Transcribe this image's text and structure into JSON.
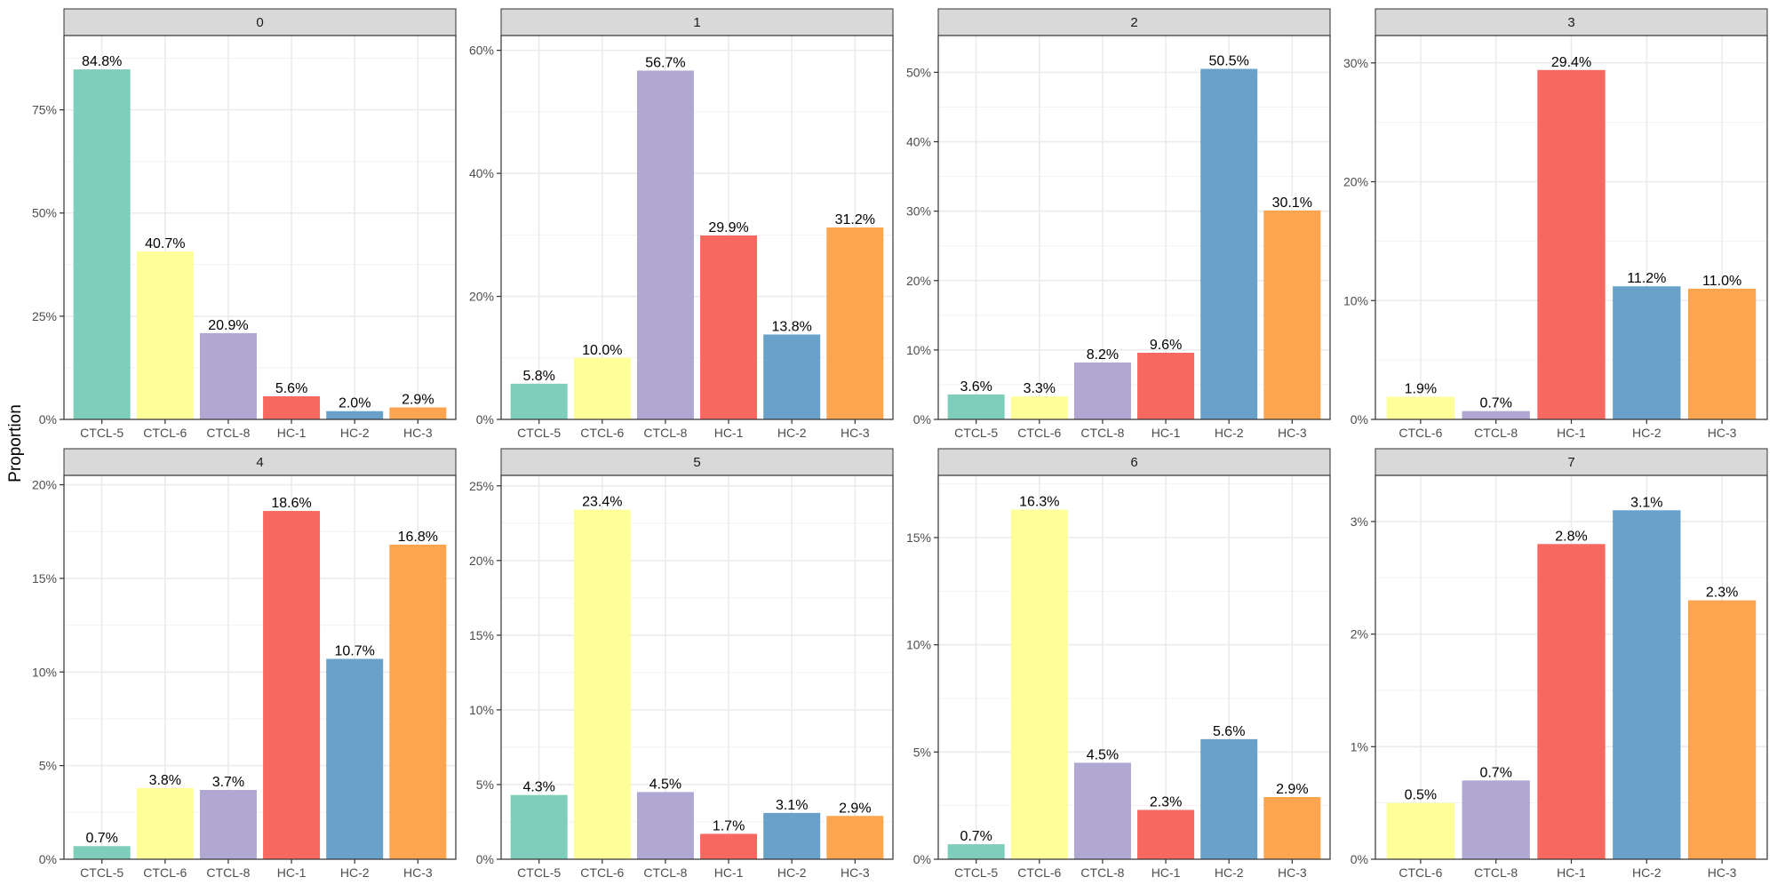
{
  "figure": {
    "ylabel": "Proportion"
  },
  "colors": {
    "CTCL-5": "#7FCDBB",
    "CTCL-6": "#FFFF99",
    "CTCL-8": "#B0A8D2",
    "HC-1": "#F76861",
    "HC-2": "#6AA1CB",
    "HC-3": "#FCA550",
    "strip_bg": "#D9D9D9",
    "grid": "#EBEBEB"
  },
  "chart_data": [
    {
      "type": "bar",
      "facet": "0",
      "categories": [
        "CTCL-5",
        "CTCL-6",
        "CTCL-8",
        "HC-1",
        "HC-2",
        "HC-3"
      ],
      "values": [
        84.8,
        40.7,
        20.9,
        5.6,
        2.0,
        2.9
      ],
      "labels": [
        "84.8%",
        "40.7%",
        "20.9%",
        "5.6%",
        "2.0%",
        "2.9%"
      ],
      "ylim": [
        0,
        93
      ],
      "yticks": [
        0,
        25,
        50,
        75
      ],
      "ytick_labels": [
        "0%",
        "25%",
        "50%",
        "75%"
      ],
      "grid": true
    },
    {
      "type": "bar",
      "facet": "1",
      "categories": [
        "CTCL-5",
        "CTCL-6",
        "CTCL-8",
        "HC-1",
        "HC-2",
        "HC-3"
      ],
      "values": [
        5.8,
        10.0,
        56.7,
        29.9,
        13.8,
        31.2
      ],
      "labels": [
        "5.8%",
        "10.0%",
        "56.7%",
        "29.9%",
        "13.8%",
        "31.2%"
      ],
      "ylim": [
        0,
        62.4
      ],
      "yticks": [
        0,
        20,
        40,
        60
      ],
      "ytick_labels": [
        "0%",
        "20%",
        "40%",
        "60%"
      ],
      "grid": true
    },
    {
      "type": "bar",
      "facet": "2",
      "categories": [
        "CTCL-5",
        "CTCL-6",
        "CTCL-8",
        "HC-1",
        "HC-2",
        "HC-3"
      ],
      "values": [
        3.6,
        3.3,
        8.2,
        9.6,
        50.5,
        30.1
      ],
      "labels": [
        "3.6%",
        "3.3%",
        "8.2%",
        "9.6%",
        "50.5%",
        "30.1%"
      ],
      "ylim": [
        0,
        55.3
      ],
      "yticks": [
        0,
        10,
        20,
        30,
        40,
        50
      ],
      "ytick_labels": [
        "0%",
        "10%",
        "20%",
        "30%",
        "40%",
        "50%"
      ],
      "grid": true
    },
    {
      "type": "bar",
      "facet": "3",
      "categories": [
        "CTCL-6",
        "CTCL-8",
        "HC-1",
        "HC-2",
        "HC-3"
      ],
      "values": [
        1.9,
        0.7,
        29.4,
        11.2,
        11.0
      ],
      "labels": [
        "1.9%",
        "0.7%",
        "29.4%",
        "11.2%",
        "11.0%"
      ],
      "ylim": [
        0,
        32.3
      ],
      "yticks": [
        0,
        10,
        20,
        30
      ],
      "ytick_labels": [
        "0%",
        "10%",
        "20%",
        "30%"
      ],
      "grid": true
    },
    {
      "type": "bar",
      "facet": "4",
      "categories": [
        "CTCL-5",
        "CTCL-6",
        "CTCL-8",
        "HC-1",
        "HC-2",
        "HC-3"
      ],
      "values": [
        0.7,
        3.8,
        3.7,
        18.6,
        10.7,
        16.8
      ],
      "labels": [
        "0.7%",
        "3.8%",
        "3.7%",
        "18.6%",
        "10.7%",
        "16.8%"
      ],
      "ylim": [
        0,
        20.5
      ],
      "yticks": [
        0,
        5,
        10,
        15,
        20
      ],
      "ytick_labels": [
        "0%",
        "5%",
        "10%",
        "15%",
        "20%"
      ],
      "grid": true
    },
    {
      "type": "bar",
      "facet": "5",
      "categories": [
        "CTCL-5",
        "CTCL-6",
        "CTCL-8",
        "HC-1",
        "HC-2",
        "HC-3"
      ],
      "values": [
        4.3,
        23.4,
        4.5,
        1.7,
        3.1,
        2.9
      ],
      "labels": [
        "4.3%",
        "23.4%",
        "4.5%",
        "1.7%",
        "3.1%",
        "2.9%"
      ],
      "ylim": [
        0,
        25.7
      ],
      "yticks": [
        0,
        5,
        10,
        15,
        20,
        25
      ],
      "ytick_labels": [
        "0%",
        "5%",
        "10%",
        "15%",
        "20%",
        "25%"
      ],
      "grid": true
    },
    {
      "type": "bar",
      "facet": "6",
      "categories": [
        "CTCL-5",
        "CTCL-6",
        "CTCL-8",
        "HC-1",
        "HC-2",
        "HC-3"
      ],
      "values": [
        0.7,
        16.3,
        4.5,
        2.3,
        5.6,
        2.9
      ],
      "labels": [
        "0.7%",
        "16.3%",
        "4.5%",
        "2.3%",
        "5.6%",
        "2.9%"
      ],
      "ylim": [
        0,
        17.9
      ],
      "yticks": [
        0,
        5,
        10,
        15
      ],
      "ytick_labels": [
        "0%",
        "5%",
        "10%",
        "15%"
      ],
      "grid": true
    },
    {
      "type": "bar",
      "facet": "7",
      "categories": [
        "CTCL-6",
        "CTCL-8",
        "HC-1",
        "HC-2",
        "HC-3"
      ],
      "values": [
        0.5,
        0.7,
        2.8,
        3.1,
        2.3
      ],
      "labels": [
        "0.5%",
        "0.7%",
        "2.8%",
        "3.1%",
        "2.3%"
      ],
      "ylim": [
        0,
        3.41
      ],
      "yticks": [
        0,
        1,
        2,
        3
      ],
      "ytick_labels": [
        "0%",
        "1%",
        "2%",
        "3%"
      ],
      "grid": true
    }
  ]
}
